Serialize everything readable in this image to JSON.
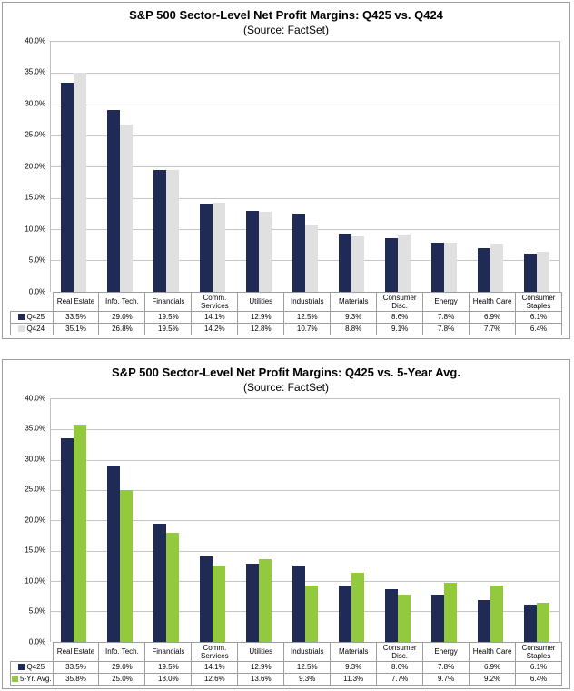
{
  "chart_data": [
    {
      "type": "bar",
      "title": "S&P 500 Sector-Level Net Profit Margins: Q425 vs. Q424",
      "subtitle": "(Source: FactSet)",
      "categories": [
        "Real Estate",
        "Info. Tech.",
        "Financials",
        "Comm. Services",
        "Utilities",
        "Industrials",
        "Materials",
        "Consumer Disc.",
        "Energy",
        "Health Care",
        "Consumer Staples"
      ],
      "series": [
        {
          "name": "Q425",
          "color": "#1F2B55",
          "values": [
            33.5,
            29.0,
            19.5,
            14.1,
            12.9,
            12.5,
            9.3,
            8.6,
            7.8,
            6.9,
            6.1
          ]
        },
        {
          "name": "Q424",
          "color": "#E0E0E0",
          "values": [
            35.1,
            26.8,
            19.5,
            14.2,
            12.8,
            10.7,
            8.8,
            9.1,
            7.8,
            7.7,
            6.4
          ]
        }
      ],
      "ylim": [
        0,
        40
      ],
      "y_step": 5,
      "y_tick_format": "0.0%",
      "grid": true,
      "legend_position": "data-table-left-column"
    },
    {
      "type": "bar",
      "title": "S&P 500 Sector-Level Net Profit Margins: Q425 vs. 5-Year Avg.",
      "subtitle": "(Source: FactSet)",
      "categories": [
        "Real Estate",
        "Info. Tech.",
        "Financials",
        "Comm. Services",
        "Utilities",
        "Industrials",
        "Materials",
        "Consumer Disc.",
        "Energy",
        "Health Care",
        "Consumer Staples"
      ],
      "series": [
        {
          "name": "Q425",
          "color": "#1F2B55",
          "values": [
            33.5,
            29.0,
            19.5,
            14.1,
            12.9,
            12.5,
            9.3,
            8.6,
            7.8,
            6.9,
            6.1
          ]
        },
        {
          "name": "5-Yr. Avg.",
          "color": "#93C93C",
          "values": [
            35.8,
            25.0,
            18.0,
            12.6,
            13.6,
            9.3,
            11.3,
            7.7,
            9.7,
            9.2,
            6.4
          ]
        }
      ],
      "ylim": [
        0,
        40
      ],
      "y_step": 5,
      "y_tick_format": "0.0%",
      "grid": true,
      "legend_position": "data-table-left-column"
    }
  ],
  "colors": {
    "q425_navy": "#1F2B55",
    "q424_gray": "#E0E0E0",
    "five_yr_avg_green": "#93C93C",
    "gridline": "#C6C6C6",
    "table_border": "#9E9E9E"
  }
}
